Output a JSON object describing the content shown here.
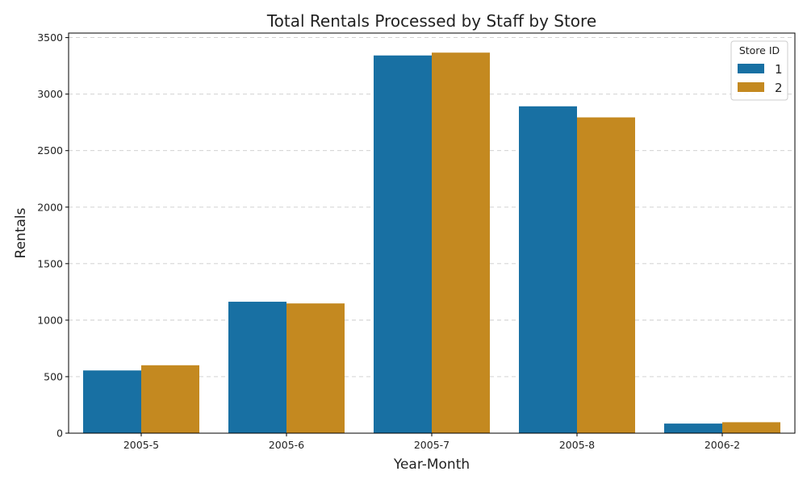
{
  "chart_data": {
    "type": "bar",
    "title": "Total Rentals Processed by Staff by Store",
    "xlabel": "Year-Month",
    "ylabel": "Rentals",
    "categories": [
      "2005-5",
      "2005-6",
      "2005-7",
      "2005-8",
      "2006-2"
    ],
    "series": [
      {
        "name": "1",
        "values": [
          555,
          1163,
          3342,
          2892,
          85
        ],
        "color": "#1870a3"
      },
      {
        "name": "2",
        "values": [
          601,
          1148,
          3367,
          2794,
          97
        ],
        "color": "#c48920"
      }
    ],
    "ylim": [
      0,
      3540
    ],
    "yticks": [
      0,
      500,
      1000,
      1500,
      2000,
      2500,
      3000,
      3500
    ],
    "grid": "y-dashed",
    "legend": {
      "title": "Store ID",
      "placement": "top-right"
    }
  }
}
